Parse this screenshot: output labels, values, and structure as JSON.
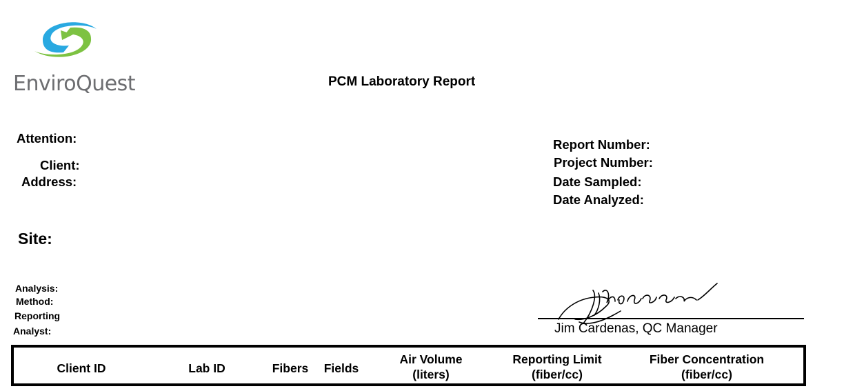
{
  "brand": {
    "name": "EnviroQuest",
    "logo_icon": "enviroquest-swirl-logo",
    "colors": {
      "blue": "#29a9e1",
      "green": "#7dc242",
      "gray": "#6d6e71"
    }
  },
  "report": {
    "title": "PCM Laboratory Report"
  },
  "client_block": {
    "attention_label": "Attention:",
    "client_label": "Client:",
    "address_label": "Address:"
  },
  "report_block": {
    "report_number_label": "Report Number:",
    "project_number_label": "Project Number:",
    "date_sampled_label": "Date Sampled:",
    "date_analyzed_label": "Date Analyzed:"
  },
  "site_label": "Site:",
  "analysis_block": {
    "analysis_label": "Analysis:",
    "method_label": "Method:",
    "reporting_label": "Reporting",
    "analyst_label": "Analyst:"
  },
  "signature": {
    "signer": "Jim Cardenas, QC Manager"
  },
  "table": {
    "columns": [
      {
        "line1": "Client ID",
        "line2": ""
      },
      {
        "line1": "Lab ID",
        "line2": ""
      },
      {
        "line1": "Fibers",
        "line2": ""
      },
      {
        "line1": "Fields",
        "line2": ""
      },
      {
        "line1": "Air Volume",
        "line2": "(liters)"
      },
      {
        "line1": "Reporting Limit",
        "line2": "(fiber/cc)"
      },
      {
        "line1": "Fiber Concentration",
        "line2": "(fiber/cc)"
      }
    ]
  }
}
